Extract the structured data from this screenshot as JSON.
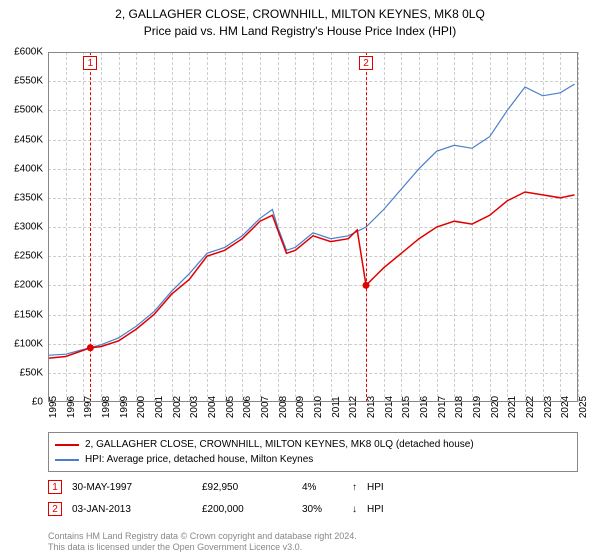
{
  "title": {
    "line1": "2, GALLAGHER CLOSE, CROWNHILL, MILTON KEYNES, MK8 0LQ",
    "line2": "Price paid vs. HM Land Registry's House Price Index (HPI)"
  },
  "chart": {
    "type": "line",
    "background_color": "#ffffff",
    "grid_color": "#cccccc",
    "border_color": "#888888",
    "ylim": [
      0,
      600000
    ],
    "ytick_step": 50000,
    "y_ticks": [
      "£0",
      "£50K",
      "£100K",
      "£150K",
      "£200K",
      "£250K",
      "£300K",
      "£350K",
      "£400K",
      "£450K",
      "£500K",
      "£550K",
      "£600K"
    ],
    "xlim": [
      1995,
      2025
    ],
    "x_ticks": [
      1995,
      1996,
      1997,
      1998,
      1999,
      2000,
      2001,
      2002,
      2003,
      2004,
      2005,
      2006,
      2007,
      2008,
      2009,
      2010,
      2011,
      2012,
      2013,
      2014,
      2015,
      2016,
      2017,
      2018,
      2019,
      2020,
      2021,
      2022,
      2023,
      2024,
      2025
    ],
    "label_fontsize": 10,
    "series": {
      "price_paid": {
        "color": "#e00000",
        "line_width": 1.5,
        "points": [
          [
            1995,
            75000
          ],
          [
            1996,
            78000
          ],
          [
            1997.4,
            92950
          ],
          [
            1998,
            95000
          ],
          [
            1999,
            105000
          ],
          [
            2000,
            125000
          ],
          [
            2001,
            150000
          ],
          [
            2002,
            185000
          ],
          [
            2003,
            210000
          ],
          [
            2004,
            250000
          ],
          [
            2005,
            260000
          ],
          [
            2006,
            280000
          ],
          [
            2007,
            310000
          ],
          [
            2007.7,
            320000
          ],
          [
            2008,
            295000
          ],
          [
            2008.5,
            255000
          ],
          [
            2009,
            260000
          ],
          [
            2010,
            285000
          ],
          [
            2011,
            275000
          ],
          [
            2012,
            280000
          ],
          [
            2012.5,
            295000
          ],
          [
            2013.0,
            200000
          ],
          [
            2013.5,
            215000
          ],
          [
            2014,
            230000
          ],
          [
            2015,
            255000
          ],
          [
            2016,
            280000
          ],
          [
            2017,
            300000
          ],
          [
            2018,
            310000
          ],
          [
            2019,
            305000
          ],
          [
            2020,
            320000
          ],
          [
            2021,
            345000
          ],
          [
            2022,
            360000
          ],
          [
            2023,
            355000
          ],
          [
            2024,
            350000
          ],
          [
            2024.8,
            355000
          ]
        ]
      },
      "hpi": {
        "color": "#4a7fc9",
        "line_width": 1.2,
        "points": [
          [
            1995,
            80000
          ],
          [
            1996,
            82000
          ],
          [
            1997,
            90000
          ],
          [
            1998,
            98000
          ],
          [
            1999,
            110000
          ],
          [
            2000,
            130000
          ],
          [
            2001,
            155000
          ],
          [
            2002,
            190000
          ],
          [
            2003,
            220000
          ],
          [
            2004,
            255000
          ],
          [
            2005,
            265000
          ],
          [
            2006,
            285000
          ],
          [
            2007,
            315000
          ],
          [
            2007.7,
            330000
          ],
          [
            2008,
            300000
          ],
          [
            2008.5,
            260000
          ],
          [
            2009,
            265000
          ],
          [
            2010,
            290000
          ],
          [
            2011,
            280000
          ],
          [
            2012,
            285000
          ],
          [
            2013,
            300000
          ],
          [
            2014,
            330000
          ],
          [
            2015,
            365000
          ],
          [
            2016,
            400000
          ],
          [
            2017,
            430000
          ],
          [
            2018,
            440000
          ],
          [
            2019,
            435000
          ],
          [
            2020,
            455000
          ],
          [
            2021,
            500000
          ],
          [
            2022,
            540000
          ],
          [
            2023,
            525000
          ],
          [
            2024,
            530000
          ],
          [
            2024.8,
            545000
          ]
        ]
      }
    },
    "markers": [
      {
        "id": "1",
        "year": 1997.4,
        "value": 92950
      },
      {
        "id": "2",
        "year": 2013.0,
        "value": 200000
      }
    ]
  },
  "legend": {
    "series1": "2, GALLAGHER CLOSE, CROWNHILL, MILTON KEYNES, MK8 0LQ (detached house)",
    "series2": "HPI: Average price, detached house, Milton Keynes"
  },
  "transactions": [
    {
      "id": "1",
      "date": "30-MAY-1997",
      "price": "£92,950",
      "pct": "4%",
      "arrow": "↑",
      "label": "HPI"
    },
    {
      "id": "2",
      "date": "03-JAN-2013",
      "price": "£200,000",
      "pct": "30%",
      "arrow": "↓",
      "label": "HPI"
    }
  ],
  "footer": {
    "line1": "Contains HM Land Registry data © Crown copyright and database right 2024.",
    "line2": "This data is licensed under the Open Government Licence v3.0."
  },
  "colors": {
    "marker_border": "#e00000",
    "text": "#000000",
    "footer_text": "#888888"
  }
}
